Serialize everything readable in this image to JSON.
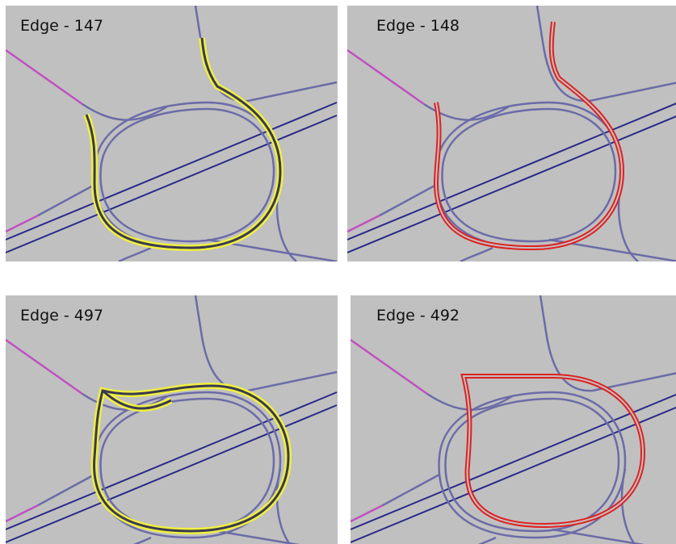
{
  "panels": [
    {
      "label": "Edge - 147"
    },
    {
      "label": "Edge - 148"
    },
    {
      "label": "Edge - 497"
    },
    {
      "label": "Edge - 492"
    }
  ]
}
